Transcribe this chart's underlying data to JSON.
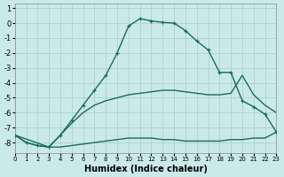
{
  "xlabel": "Humidex (Indice chaleur)",
  "bg_color": "#caeaea",
  "grid_color": "#aed0d0",
  "line_color": "#1a6b5a",
  "xlim": [
    0,
    23
  ],
  "ylim": [
    -8.7,
    1.3
  ],
  "yticks": [
    1,
    0,
    -1,
    -2,
    -3,
    -4,
    -5,
    -6,
    -7,
    -8
  ],
  "xticks": [
    0,
    1,
    2,
    3,
    4,
    5,
    6,
    7,
    8,
    9,
    10,
    11,
    12,
    13,
    14,
    15,
    16,
    17,
    18,
    19,
    20,
    21,
    22,
    23
  ],
  "curve_main_x": [
    0,
    1,
    2,
    3,
    4,
    5,
    6,
    7,
    8,
    9,
    10,
    11,
    12,
    13,
    14,
    15,
    16,
    17,
    18,
    19,
    20,
    21,
    22,
    23
  ],
  "curve_main_y": [
    -7.5,
    -8.0,
    -8.2,
    -8.3,
    -7.5,
    -6.5,
    -5.5,
    -4.5,
    -3.5,
    -2.0,
    -0.2,
    0.3,
    0.15,
    0.05,
    0.0,
    -0.5,
    -1.2,
    -1.8,
    -3.3,
    -3.3,
    -5.2,
    -5.6,
    -6.1,
    -7.3
  ],
  "curve_mid_x": [
    0,
    3,
    4,
    5,
    6,
    7,
    8,
    9,
    10,
    11,
    12,
    13,
    14,
    15,
    16,
    17,
    18,
    19,
    20,
    21,
    22,
    23
  ],
  "curve_mid_y": [
    -7.5,
    -8.3,
    -7.5,
    -6.7,
    -6.0,
    -5.5,
    -5.2,
    -5.0,
    -4.8,
    -4.7,
    -4.6,
    -4.5,
    -4.5,
    -4.6,
    -4.7,
    -4.8,
    -4.8,
    -4.7,
    -3.5,
    -4.8,
    -5.5,
    -6.0
  ],
  "curve_low_x": [
    0,
    1,
    2,
    3,
    4,
    5,
    6,
    7,
    8,
    9,
    10,
    11,
    12,
    13,
    14,
    15,
    16,
    17,
    18,
    19,
    20,
    21,
    22,
    23
  ],
  "curve_low_y": [
    -7.5,
    -8.0,
    -8.2,
    -8.3,
    -8.3,
    -8.2,
    -8.1,
    -8.0,
    -7.9,
    -7.8,
    -7.7,
    -7.7,
    -7.7,
    -7.8,
    -7.8,
    -7.9,
    -7.9,
    -7.9,
    -7.9,
    -7.8,
    -7.8,
    -7.7,
    -7.7,
    -7.3
  ]
}
